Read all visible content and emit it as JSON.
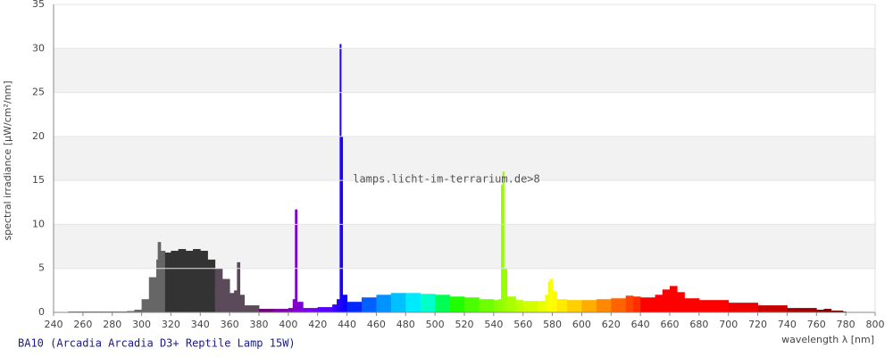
{
  "chart_data": {
    "type": "spectrum",
    "title": "BA10 (Arcadia Arcadia D3+ Reptile Lamp 15W)",
    "watermark": "lamps.licht-im-terrarium.de>8",
    "x_label": "wavelength λ [nm]",
    "y_label": "spectral irradiance [µW/cm²/nm]",
    "xlim": [
      240,
      800
    ],
    "ylim": [
      0,
      35
    ],
    "xticks": [
      240,
      260,
      280,
      300,
      320,
      340,
      360,
      380,
      400,
      420,
      440,
      460,
      480,
      500,
      520,
      540,
      560,
      580,
      600,
      620,
      640,
      660,
      680,
      700,
      720,
      740,
      760,
      780,
      800
    ],
    "yticks": [
      0,
      5,
      10,
      15,
      20,
      25,
      30,
      35
    ],
    "grid": true,
    "x": [
      250,
      260,
      270,
      280,
      290,
      295,
      300,
      305,
      310,
      311,
      313,
      316,
      320,
      325,
      330,
      335,
      340,
      345,
      350,
      355,
      360,
      363,
      365,
      367,
      370,
      380,
      390,
      400,
      403,
      404.5,
      406,
      410,
      420,
      430,
      433,
      435,
      436,
      437,
      440,
      450,
      460,
      470,
      480,
      490,
      500,
      510,
      520,
      530,
      540,
      543,
      545,
      546,
      547,
      549,
      555,
      560,
      570,
      575,
      577,
      578,
      580,
      583,
      590,
      600,
      610,
      620,
      630,
      635,
      640,
      650,
      655,
      660,
      665,
      670,
      680,
      700,
      720,
      740,
      760,
      765,
      770,
      778,
      780
    ],
    "values": [
      0.1,
      0.1,
      0.1,
      0.1,
      0.15,
      0.3,
      1.5,
      4,
      6,
      8,
      7,
      6.8,
      7,
      7.2,
      7,
      7.2,
      7,
      6,
      5,
      3.8,
      2.2,
      2.5,
      5.7,
      2,
      0.8,
      0.4,
      0.4,
      0.5,
      1.5,
      11.7,
      1.2,
      0.5,
      0.6,
      0.9,
      1.5,
      30.5,
      20,
      2,
      1.2,
      1.7,
      2,
      2.2,
      2.2,
      2.1,
      2,
      1.8,
      1.7,
      1.5,
      1.4,
      1.5,
      14.5,
      16,
      5,
      1.8,
      1.4,
      1.3,
      1.3,
      2,
      3.5,
      3.8,
      2.4,
      1.5,
      1.4,
      1.4,
      1.5,
      1.6,
      1.9,
      1.8,
      1.7,
      2,
      2.6,
      3,
      2.3,
      1.6,
      1.4,
      1.1,
      0.8,
      0.5,
      0.3,
      0.4,
      0.2,
      0.1,
      0
    ]
  }
}
